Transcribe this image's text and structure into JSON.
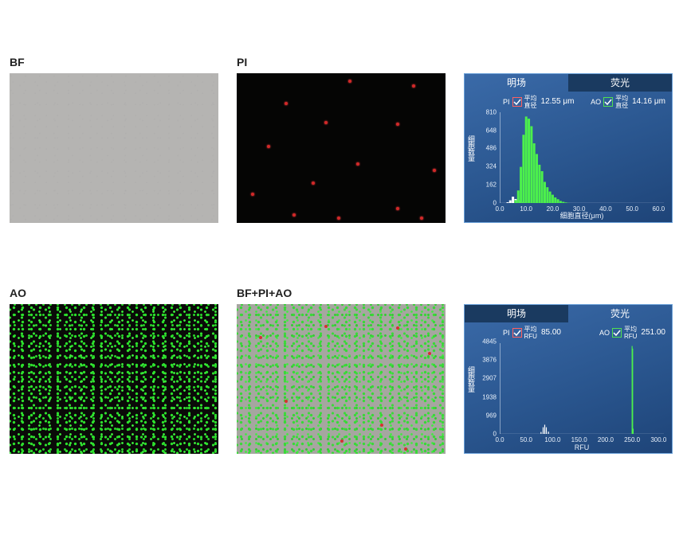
{
  "panels": {
    "bf": {
      "label": "BF"
    },
    "pi": {
      "label": "PI"
    },
    "ao": {
      "label": "AO"
    },
    "merge": {
      "label": "BF+PI+AO"
    }
  },
  "pi_red_dots": [
    [
      140,
      8
    ],
    [
      220,
      14
    ],
    [
      60,
      36
    ],
    [
      110,
      60
    ],
    [
      200,
      62
    ],
    [
      38,
      90
    ],
    [
      150,
      112
    ],
    [
      246,
      120
    ],
    [
      18,
      150
    ],
    [
      94,
      136
    ],
    [
      200,
      168
    ],
    [
      230,
      180
    ],
    [
      126,
      180
    ],
    [
      70,
      176
    ]
  ],
  "merge_red_dots": [
    [
      28,
      40
    ],
    [
      110,
      26
    ],
    [
      200,
      28
    ],
    [
      240,
      60
    ],
    [
      60,
      120
    ],
    [
      180,
      150
    ],
    [
      130,
      170
    ],
    [
      210,
      180
    ]
  ],
  "chart1": {
    "tabs": {
      "active": "明场",
      "inactive": "荧光"
    },
    "active_index": 0,
    "legend": {
      "pi": {
        "tag": "PI",
        "line1": "平均",
        "line2": "直径",
        "value": "12.55 μm"
      },
      "ao": {
        "tag": "AO",
        "line1": "平均",
        "line2": "直径",
        "value": "14.16 μm"
      }
    },
    "y": {
      "label": "细胞数量",
      "ticks": [
        0,
        162,
        324,
        486,
        648,
        810
      ],
      "max": 850
    },
    "x": {
      "label": "细胞直径(μm)",
      "ticks": [
        0,
        10,
        20,
        30,
        40,
        50,
        60
      ],
      "max": 62
    },
    "bars_green": [
      [
        6,
        30
      ],
      [
        7,
        120
      ],
      [
        8,
        340
      ],
      [
        9,
        640
      ],
      [
        10,
        810
      ],
      [
        11,
        790
      ],
      [
        12,
        720
      ],
      [
        13,
        560
      ],
      [
        14,
        460
      ],
      [
        15,
        360
      ],
      [
        16,
        300
      ],
      [
        17,
        200
      ],
      [
        18,
        150
      ],
      [
        19,
        110
      ],
      [
        20,
        80
      ],
      [
        21,
        55
      ],
      [
        22,
        38
      ],
      [
        23,
        22
      ],
      [
        24,
        14
      ],
      [
        25,
        8
      ],
      [
        26,
        4
      ]
    ],
    "bars_white": [
      [
        3,
        10
      ],
      [
        4,
        28
      ],
      [
        5,
        62
      ],
      [
        6,
        40
      ],
      [
        7,
        30
      ],
      [
        8,
        18
      ],
      [
        9,
        10
      ]
    ]
  },
  "chart2": {
    "tabs": {
      "inactive": "明场",
      "active": "荧光"
    },
    "active_index": 1,
    "legend": {
      "pi": {
        "tag": "PI",
        "line1": "平均",
        "line2": "RFU",
        "value": "85.00"
      },
      "ao": {
        "tag": "AO",
        "line1": "平均",
        "line2": "RFU",
        "value": "251.00"
      }
    },
    "y": {
      "label": "细胞数量",
      "ticks": [
        0,
        969,
        1938,
        2907,
        3876,
        4845
      ],
      "max": 5000
    },
    "x": {
      "label": "RFU",
      "ticks": [
        0,
        50,
        100,
        150,
        200,
        250,
        300
      ],
      "max": 310
    },
    "bars_green": [
      [
        250,
        4845
      ],
      [
        251,
        4700
      ],
      [
        252,
        300
      ]
    ],
    "bars_white": [
      [
        78,
        120
      ],
      [
        82,
        380
      ],
      [
        85,
        520
      ],
      [
        88,
        380
      ],
      [
        92,
        140
      ]
    ]
  },
  "colors": {
    "chart_bg_top": "#3a6aa8",
    "chart_bg_bot": "#1e4478",
    "bar_green": "#4cf04c",
    "bar_white": "#ffffff",
    "axis": "#e8f0fa",
    "pi_border": "#ff6060",
    "ao_border": "#50e050",
    "bf_gray": "#b5b4b2",
    "pi_red": "#d22828",
    "ao_green": "#2be02b"
  }
}
